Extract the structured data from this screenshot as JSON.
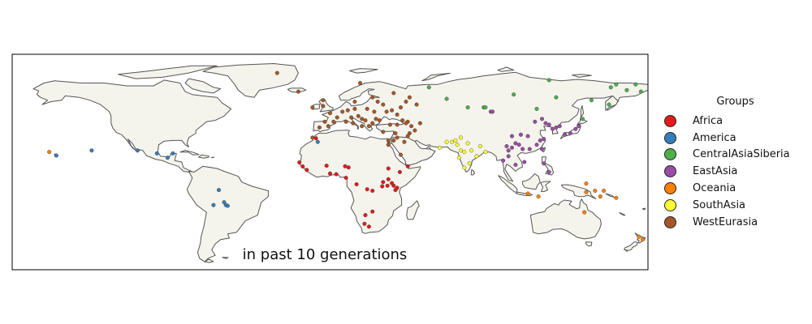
{
  "caption": "in past 10 generations",
  "legend": {
    "title": "Groups",
    "items": [
      {
        "label": "Africa",
        "color": "#e41a1c"
      },
      {
        "label": "America",
        "color": "#377eb8"
      },
      {
        "label": "CentralAsiaSiberia",
        "color": "#4daf4a"
      },
      {
        "label": "EastAsia",
        "color": "#984ea3"
      },
      {
        "label": "Oceania",
        "color": "#ff7f00"
      },
      {
        "label": "SouthAsia",
        "color": "#ffff33"
      },
      {
        "label": "WestEurasia",
        "color": "#a65628"
      }
    ]
  },
  "map": {
    "projection": "equirectangular",
    "lon_range": [
      -180,
      180
    ],
    "lat_range": [
      -60,
      90
    ],
    "land_color": "#f4f4ec",
    "coast_color": "#555555",
    "sample_points": {
      "Africa": [
        [
          -17.4,
          14.7
        ],
        [
          -15.5,
          11.9
        ],
        [
          -13.2,
          9.5
        ],
        [
          -8,
          31.5
        ],
        [
          -2,
          12.4
        ],
        [
          8.5,
          12
        ],
        [
          10.5,
          11.2
        ],
        [
          3.5,
          6.5
        ],
        [
          9,
          4
        ],
        [
          15,
          -0.5
        ],
        [
          21,
          -4
        ],
        [
          24,
          -5
        ],
        [
          29.5,
          -2
        ],
        [
          32.5,
          -1.5
        ],
        [
          33,
          3
        ],
        [
          36,
          -1.5
        ],
        [
          38,
          -3
        ],
        [
          39.5,
          8
        ],
        [
          37,
          -4.5
        ],
        [
          24,
          -19.5
        ],
        [
          20,
          -22
        ],
        [
          19.5,
          -28
        ],
        [
          22,
          -30
        ],
        [
          30,
          1
        ],
        [
          44,
          12
        ],
        [
          35,
          0.3
        ],
        [
          33,
          10.5
        ],
        [
          0,
          7
        ]
      ],
      "America": [
        [
          -109,
          23
        ],
        [
          -98,
          21
        ],
        [
          -92,
          18
        ],
        [
          -89,
          21
        ],
        [
          -155,
          19.5
        ],
        [
          -63,
          -4.5
        ],
        [
          -66,
          -15
        ],
        [
          -59,
          -15
        ],
        [
          -58,
          -15.5
        ],
        [
          -7,
          29
        ],
        [
          -135,
          23
        ],
        [
          -60,
          -13
        ]
      ],
      "CentralAsiaSiberia": [
        [
          56,
          67
        ],
        [
          66,
          59
        ],
        [
          78,
          53
        ],
        [
          87,
          53
        ],
        [
          88,
          53
        ],
        [
          104,
          62
        ],
        [
          117,
          52
        ],
        [
          124,
          72
        ],
        [
          128,
          60
        ],
        [
          143,
          45
        ],
        [
          148,
          58
        ],
        [
          158,
          55
        ],
        [
          159,
          67
        ],
        [
          168,
          65
        ],
        [
          176,
          64
        ],
        [
          162,
          69
        ],
        [
          173,
          69
        ]
      ],
      "EastAsia": [
        [
          91,
          50
        ],
        [
          92,
          50
        ],
        [
          103,
          33
        ],
        [
          108,
          34
        ],
        [
          112,
          33
        ],
        [
          116,
          43
        ],
        [
          120,
          45
        ],
        [
          122,
          42
        ],
        [
          124,
          41
        ],
        [
          126,
          38
        ],
        [
          128,
          39
        ],
        [
          130,
          40
        ],
        [
          133,
          34
        ],
        [
          136,
          35
        ],
        [
          139,
          38
        ],
        [
          141,
          40
        ],
        [
          100,
          26
        ],
        [
          101,
          23
        ],
        [
          103,
          25
        ],
        [
          105,
          28
        ],
        [
          107,
          27
        ],
        [
          109,
          24
        ],
        [
          113,
          24
        ],
        [
          117,
          27
        ],
        [
          119,
          30
        ],
        [
          121,
          31
        ],
        [
          120,
          24
        ],
        [
          110,
          15
        ],
        [
          105,
          13
        ],
        [
          101,
          19
        ],
        [
          98,
          16
        ],
        [
          121,
          14
        ],
        [
          124,
          8
        ]
      ],
      "Oceania": [
        [
          -159,
          22
        ],
        [
          145,
          -6
        ],
        [
          150,
          -5
        ],
        [
          155,
          -5
        ],
        [
          153,
          -9
        ],
        [
          144,
          -20
        ],
        [
          162,
          -10
        ],
        [
          145,
          0
        ],
        [
          175,
          -37
        ],
        [
          177,
          -39
        ],
        [
          112,
          -7
        ],
        [
          118,
          -9
        ]
      ],
      "SouthAsia": [
        [
          62,
          25
        ],
        [
          66,
          29
        ],
        [
          69,
          29
        ],
        [
          71,
          30
        ],
        [
          72,
          27
        ],
        [
          74,
          32
        ],
        [
          76,
          22
        ],
        [
          78,
          28
        ],
        [
          80,
          23
        ],
        [
          83,
          19
        ],
        [
          85,
          26
        ],
        [
          88,
          22
        ],
        [
          76,
          11
        ],
        [
          79,
          14
        ],
        [
          73,
          18
        ],
        [
          74,
          23
        ]
      ],
      "WestEurasia": [
        [
          -10,
          53
        ],
        [
          -4,
          54
        ],
        [
          -3,
          43
        ],
        [
          -1,
          40
        ],
        [
          -6,
          39
        ],
        [
          0,
          49
        ],
        [
          4,
          46
        ],
        [
          2,
          43
        ],
        [
          7,
          50
        ],
        [
          9,
          43
        ],
        [
          10,
          51
        ],
        [
          12,
          46
        ],
        [
          13,
          42
        ],
        [
          14,
          52
        ],
        [
          16,
          47
        ],
        [
          18,
          45
        ],
        [
          20,
          44
        ],
        [
          22,
          40
        ],
        [
          24,
          42
        ],
        [
          26,
          45
        ],
        [
          28,
          44
        ],
        [
          21,
          52
        ],
        [
          25,
          50
        ],
        [
          27,
          57
        ],
        [
          24,
          60
        ],
        [
          14,
          57
        ],
        [
          -4,
          58
        ],
        [
          17,
          70
        ],
        [
          30,
          55
        ],
        [
          32,
          50
        ],
        [
          35,
          51
        ],
        [
          38,
          48
        ],
        [
          40,
          53
        ],
        [
          43,
          57
        ],
        [
          45,
          60
        ],
        [
          49,
          55
        ],
        [
          36,
          63
        ],
        [
          34,
          41
        ],
        [
          38,
          41
        ],
        [
          41,
          44
        ],
        [
          44,
          43
        ],
        [
          46,
          40
        ],
        [
          48,
          37
        ],
        [
          45,
          35
        ],
        [
          44,
          33
        ],
        [
          42,
          29
        ],
        [
          36,
          30
        ],
        [
          38,
          32
        ],
        [
          33,
          30
        ],
        [
          40,
          20
        ],
        [
          43,
          42
        ],
        [
          51,
          42
        ],
        [
          33,
          27
        ],
        [
          37,
          35
        ],
        [
          -18,
          64
        ],
        [
          -30,
          77
        ],
        [
          -10,
          32
        ],
        [
          30,
          36
        ],
        [
          18,
          40
        ]
      ]
    }
  }
}
